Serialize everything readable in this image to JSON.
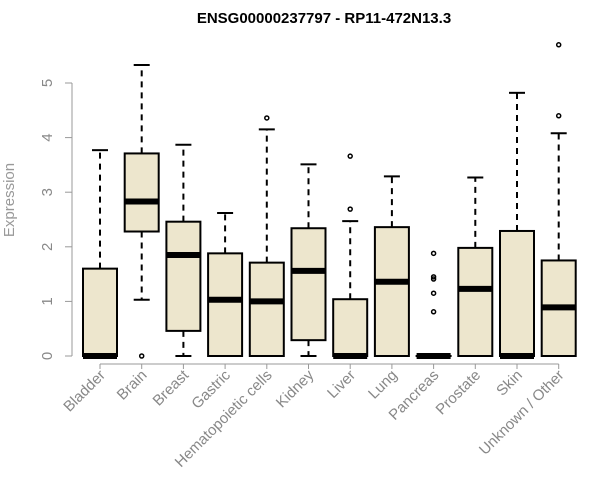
{
  "chart_data": {
    "type": "boxplot",
    "title": "ENSG00000237797 - RP11-472N13.3",
    "xlabel": "",
    "ylabel": "Expression",
    "ylim": [
      0,
      5.8
    ],
    "yticks": [
      0,
      1,
      2,
      3,
      4,
      5
    ],
    "grid": false,
    "box_fill": "#ede6cd",
    "box_stroke": "#000000",
    "axis_color": "#999999",
    "categories": [
      "Bladder",
      "Brain",
      "Breast",
      "Gastric",
      "Hematopoietic cells",
      "Kidney",
      "Liver",
      "Lung",
      "Pancreas",
      "Prostate",
      "Skin",
      "Unknown / Other"
    ],
    "boxes": [
      {
        "category": "Bladder",
        "min": 0,
        "q1": 0,
        "median": 0,
        "q3": 1.6,
        "max": 3.77,
        "outliers": []
      },
      {
        "category": "Brain",
        "min": 1.03,
        "q1": 2.28,
        "median": 2.83,
        "q3": 3.71,
        "max": 5.33,
        "outliers": [
          0
        ]
      },
      {
        "category": "Breast",
        "min": 0,
        "q1": 0.46,
        "median": 1.85,
        "q3": 2.46,
        "max": 3.87,
        "outliers": []
      },
      {
        "category": "Gastric",
        "min": 0,
        "q1": 0,
        "median": 1.03,
        "q3": 1.88,
        "max": 2.62,
        "outliers": []
      },
      {
        "category": "Hematopoietic cells",
        "min": 0,
        "q1": 0,
        "median": 1.0,
        "q3": 1.71,
        "max": 4.15,
        "outliers": [
          4.36
        ]
      },
      {
        "category": "Kidney",
        "min": 0,
        "q1": 0.29,
        "median": 1.56,
        "q3": 2.34,
        "max": 3.51,
        "outliers": []
      },
      {
        "category": "Liver",
        "min": 0,
        "q1": 0,
        "median": 0,
        "q3": 1.04,
        "max": 2.47,
        "outliers": [
          2.69,
          3.66
        ]
      },
      {
        "category": "Lung",
        "min": 0,
        "q1": 0,
        "median": 1.36,
        "q3": 2.36,
        "max": 3.29,
        "outliers": []
      },
      {
        "category": "Pancreas",
        "min": 0,
        "q1": 0,
        "median": 0,
        "q3": 0,
        "max": 0,
        "outliers": [
          0.81,
          1.15,
          1.41,
          1.88,
          1.45
        ]
      },
      {
        "category": "Prostate",
        "min": 0,
        "q1": 0,
        "median": 1.23,
        "q3": 1.98,
        "max": 3.27,
        "outliers": []
      },
      {
        "category": "Skin",
        "min": 0,
        "q1": 0,
        "median": 0,
        "q3": 2.29,
        "max": 4.82,
        "outliers": []
      },
      {
        "category": "Unknown / Other",
        "min": 0,
        "q1": 0,
        "median": 0.89,
        "q3": 1.75,
        "max": 4.08,
        "outliers": [
          4.4,
          5.7
        ]
      }
    ]
  }
}
